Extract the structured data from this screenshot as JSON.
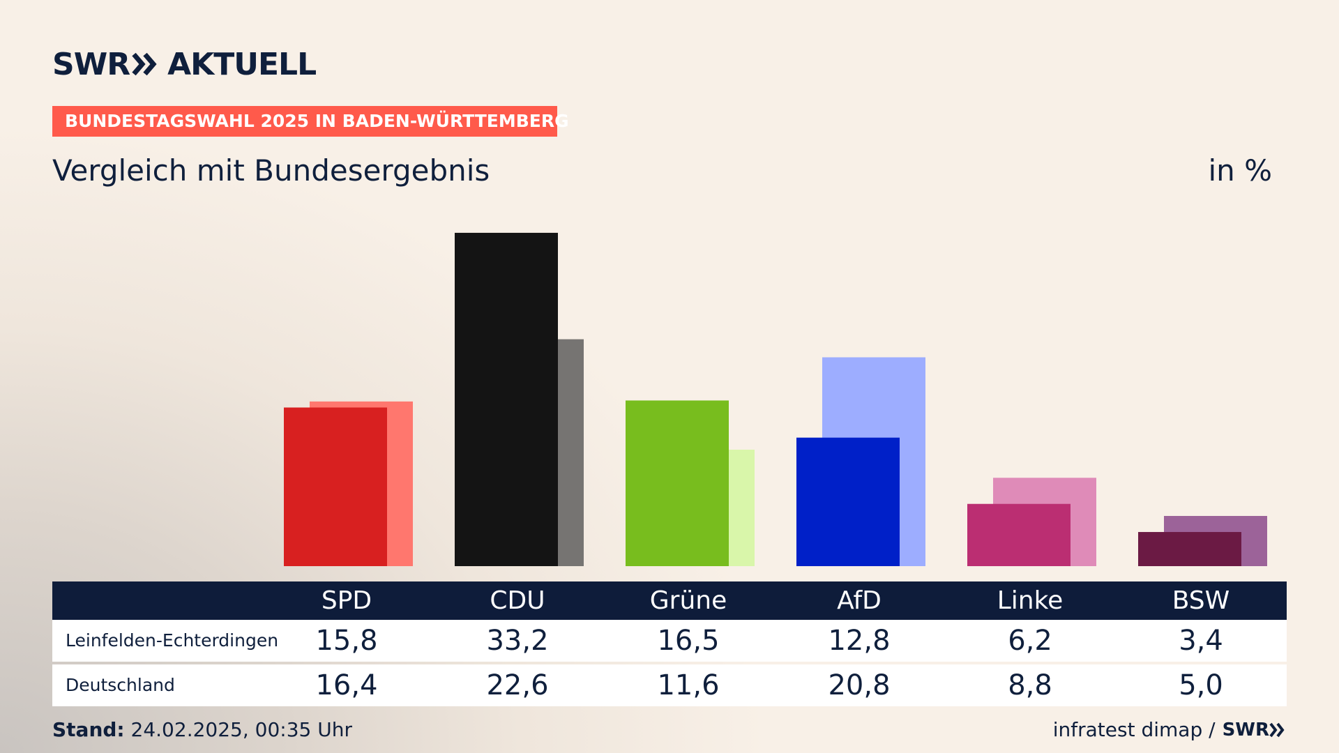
{
  "header": {
    "logo_word": "SWR",
    "logo_suffix": "AKTUELL",
    "tag": "BUNDESTAGSWAHL 2025 IN BADEN-WÜRTTEMBERG",
    "subtitle": "Vergleich mit Bundesergebnis",
    "unit": "in %"
  },
  "chart_data": {
    "type": "bar",
    "categories": [
      "SPD",
      "CDU",
      "Grüne",
      "AfD",
      "Linke",
      "BSW"
    ],
    "series": [
      {
        "name": "Leinfelden-Echterdingen",
        "values": [
          15.8,
          33.2,
          16.5,
          12.8,
          6.2,
          3.4
        ]
      },
      {
        "name": "Deutschland",
        "values": [
          16.4,
          22.6,
          11.6,
          20.8,
          8.8,
          5.0
        ]
      }
    ],
    "display": {
      "local": [
        "15,8",
        "33,2",
        "16,5",
        "12,8",
        "6,2",
        "3,4"
      ],
      "national": [
        "16,4",
        "22,6",
        "11,6",
        "20,8",
        "8,8",
        "5,0"
      ]
    },
    "colors": {
      "local": [
        "#d82020",
        "#141414",
        "#78bd1e",
        "#0020c8",
        "#bb2e72",
        "#6b1a44"
      ],
      "national": [
        "#ff776e",
        "#767472",
        "#d9f6aa",
        "#9dadff",
        "#df8bb8",
        "#9c6399"
      ]
    },
    "ylim": [
      0,
      34
    ]
  },
  "footer": {
    "stand_label": "Stand:",
    "stand_value": "24.02.2025, 00:35 Uhr",
    "source": "infratest dimap /",
    "source_logo": "SWR"
  }
}
